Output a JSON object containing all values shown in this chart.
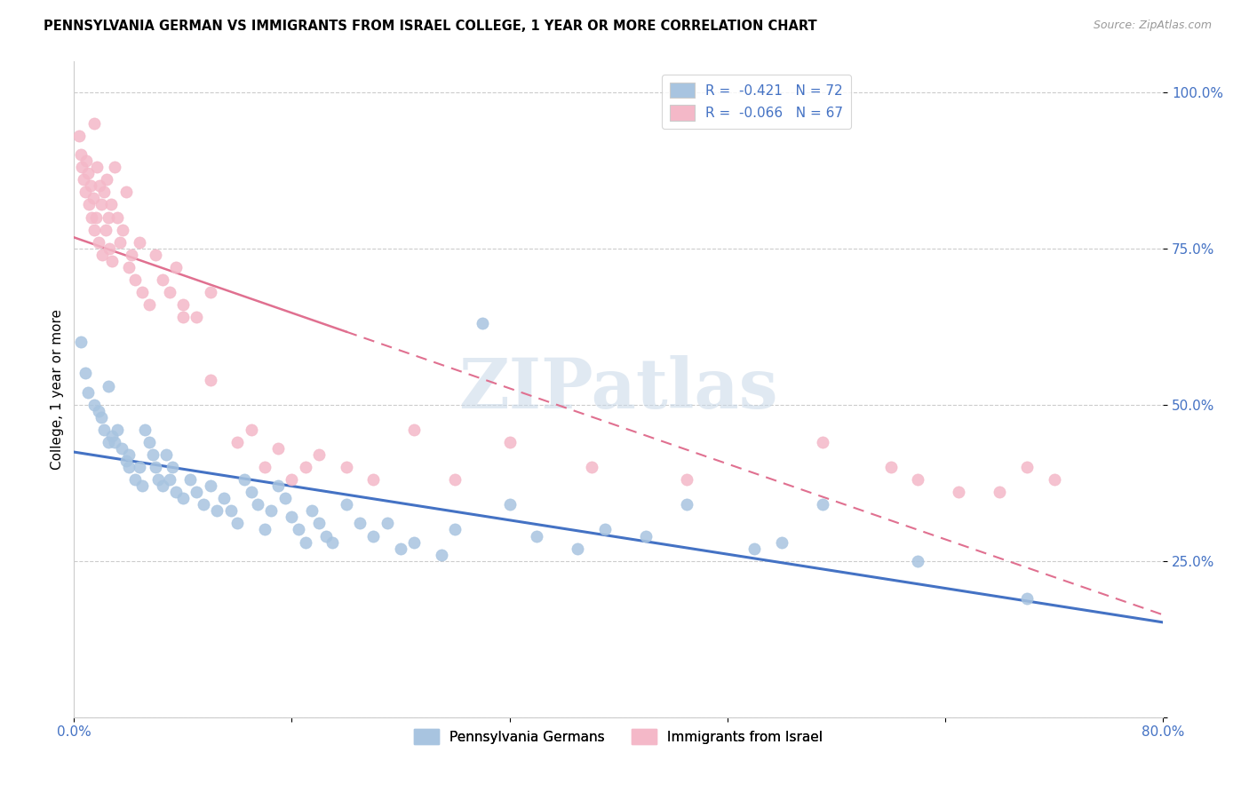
{
  "title": "PENNSYLVANIA GERMAN VS IMMIGRANTS FROM ISRAEL COLLEGE, 1 YEAR OR MORE CORRELATION CHART",
  "source": "Source: ZipAtlas.com",
  "ylabel": "College, 1 year or more",
  "ytick_labels": [
    "",
    "25.0%",
    "50.0%",
    "75.0%",
    "100.0%"
  ],
  "ytick_values": [
    0,
    0.25,
    0.5,
    0.75,
    1.0
  ],
  "xlim": [
    0.0,
    0.8
  ],
  "ylim": [
    0.0,
    1.05
  ],
  "series1_color": "#a8c4e0",
  "series2_color": "#f4b8c8",
  "line1_color": "#4472c4",
  "line2_color": "#e07090",
  "watermark": "ZIPatlas",
  "legend_label1": "R =  -0.421   N = 72",
  "legend_label2": "R =  -0.066   N = 67",
  "legend_label_pennsylvania": "Pennsylvania Germans",
  "legend_label_israel": "Immigrants from Israel",
  "scatter1_x": [
    0.005,
    0.008,
    0.01,
    0.015,
    0.018,
    0.02,
    0.022,
    0.025,
    0.025,
    0.028,
    0.03,
    0.032,
    0.035,
    0.038,
    0.04,
    0.04,
    0.045,
    0.048,
    0.05,
    0.052,
    0.055,
    0.058,
    0.06,
    0.062,
    0.065,
    0.068,
    0.07,
    0.072,
    0.075,
    0.08,
    0.085,
    0.09,
    0.095,
    0.1,
    0.105,
    0.11,
    0.115,
    0.12,
    0.125,
    0.13,
    0.135,
    0.14,
    0.145,
    0.15,
    0.155,
    0.16,
    0.165,
    0.17,
    0.175,
    0.18,
    0.185,
    0.19,
    0.2,
    0.21,
    0.22,
    0.23,
    0.24,
    0.25,
    0.27,
    0.28,
    0.3,
    0.32,
    0.34,
    0.37,
    0.39,
    0.42,
    0.45,
    0.5,
    0.52,
    0.55,
    0.62,
    0.7
  ],
  "scatter1_y": [
    0.6,
    0.55,
    0.52,
    0.5,
    0.49,
    0.48,
    0.46,
    0.44,
    0.53,
    0.45,
    0.44,
    0.46,
    0.43,
    0.41,
    0.42,
    0.4,
    0.38,
    0.4,
    0.37,
    0.46,
    0.44,
    0.42,
    0.4,
    0.38,
    0.37,
    0.42,
    0.38,
    0.4,
    0.36,
    0.35,
    0.38,
    0.36,
    0.34,
    0.37,
    0.33,
    0.35,
    0.33,
    0.31,
    0.38,
    0.36,
    0.34,
    0.3,
    0.33,
    0.37,
    0.35,
    0.32,
    0.3,
    0.28,
    0.33,
    0.31,
    0.29,
    0.28,
    0.34,
    0.31,
    0.29,
    0.31,
    0.27,
    0.28,
    0.26,
    0.3,
    0.63,
    0.34,
    0.29,
    0.27,
    0.3,
    0.29,
    0.34,
    0.27,
    0.28,
    0.34,
    0.25,
    0.19
  ],
  "scatter2_x": [
    0.004,
    0.005,
    0.006,
    0.007,
    0.008,
    0.009,
    0.01,
    0.011,
    0.012,
    0.013,
    0.014,
    0.015,
    0.015,
    0.016,
    0.017,
    0.018,
    0.019,
    0.02,
    0.021,
    0.022,
    0.023,
    0.024,
    0.025,
    0.026,
    0.027,
    0.028,
    0.03,
    0.032,
    0.034,
    0.036,
    0.038,
    0.04,
    0.042,
    0.045,
    0.048,
    0.05,
    0.055,
    0.06,
    0.065,
    0.07,
    0.075,
    0.08,
    0.09,
    0.1,
    0.12,
    0.13,
    0.14,
    0.16,
    0.18,
    0.2,
    0.22,
    0.25,
    0.28,
    0.32,
    0.38,
    0.45,
    0.55,
    0.6,
    0.62,
    0.65,
    0.68,
    0.7,
    0.72,
    0.15,
    0.17,
    0.1,
    0.08
  ],
  "scatter2_y": [
    0.93,
    0.9,
    0.88,
    0.86,
    0.84,
    0.89,
    0.87,
    0.82,
    0.85,
    0.8,
    0.83,
    0.78,
    0.95,
    0.8,
    0.88,
    0.76,
    0.85,
    0.82,
    0.74,
    0.84,
    0.78,
    0.86,
    0.8,
    0.75,
    0.82,
    0.73,
    0.88,
    0.8,
    0.76,
    0.78,
    0.84,
    0.72,
    0.74,
    0.7,
    0.76,
    0.68,
    0.66,
    0.74,
    0.7,
    0.68,
    0.72,
    0.66,
    0.64,
    0.68,
    0.44,
    0.46,
    0.4,
    0.38,
    0.42,
    0.4,
    0.38,
    0.46,
    0.38,
    0.44,
    0.4,
    0.38,
    0.44,
    0.4,
    0.38,
    0.36,
    0.36,
    0.4,
    0.38,
    0.43,
    0.4,
    0.54,
    0.64
  ]
}
